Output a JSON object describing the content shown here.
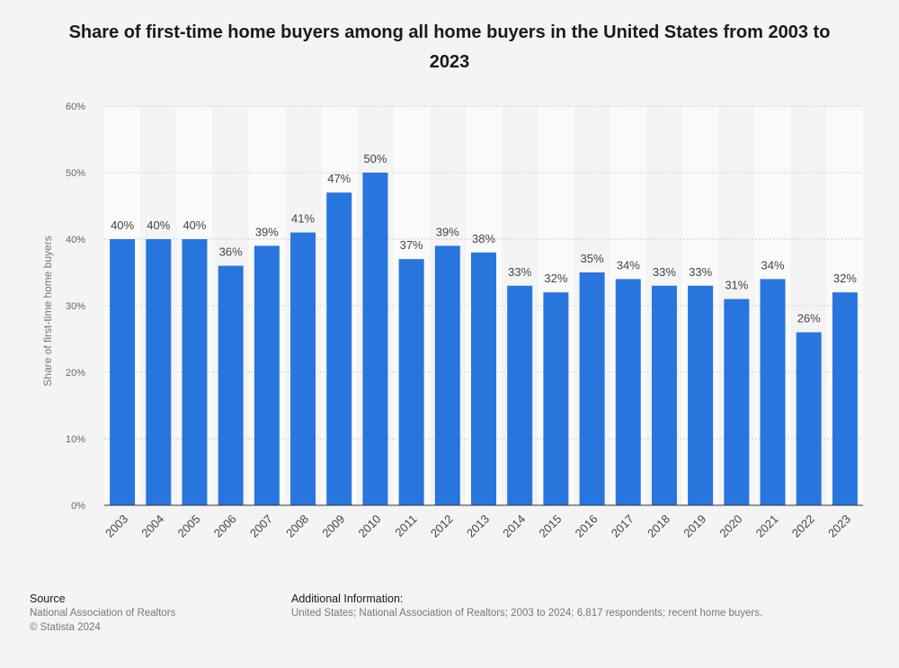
{
  "chart_data": {
    "type": "bar",
    "title": "Share of first-time home buyers among all home buyers in the United States from 2003 to 2023",
    "ylabel": "Share of first-time home buyers",
    "xlabel": "",
    "categories": [
      "2003",
      "2004",
      "2005",
      "2006",
      "2007",
      "2008",
      "2009",
      "2010",
      "2011",
      "2012",
      "2013",
      "2014",
      "2015",
      "2016",
      "2017",
      "2018",
      "2019",
      "2020",
      "2021",
      "2022",
      "2023"
    ],
    "values": [
      40,
      40,
      40,
      36,
      39,
      41,
      47,
      50,
      37,
      39,
      38,
      33,
      32,
      35,
      34,
      33,
      33,
      31,
      34,
      26,
      32
    ],
    "value_labels": [
      "40%",
      "40%",
      "40%",
      "36%",
      "39%",
      "41%",
      "47%",
      "50%",
      "37%",
      "39%",
      "38%",
      "33%",
      "32%",
      "35%",
      "34%",
      "33%",
      "33%",
      "31%",
      "34%",
      "26%",
      "32%"
    ],
    "ylim": [
      0,
      60
    ],
    "yticks": [
      0,
      10,
      20,
      30,
      40,
      50,
      60
    ],
    "ytick_labels": [
      "0%",
      "10%",
      "20%",
      "30%",
      "40%",
      "50%",
      "60%"
    ],
    "grid": true,
    "bar_color": "#2876dd"
  },
  "footer": {
    "source_heading": "Source",
    "source_line1": "National Association of Realtors",
    "source_line2": "© Statista 2024",
    "info_heading": "Additional Information:",
    "info_line": "United States; National Association of Realtors; 2003 to 2024; 6,817 respondents; recent home buyers."
  }
}
